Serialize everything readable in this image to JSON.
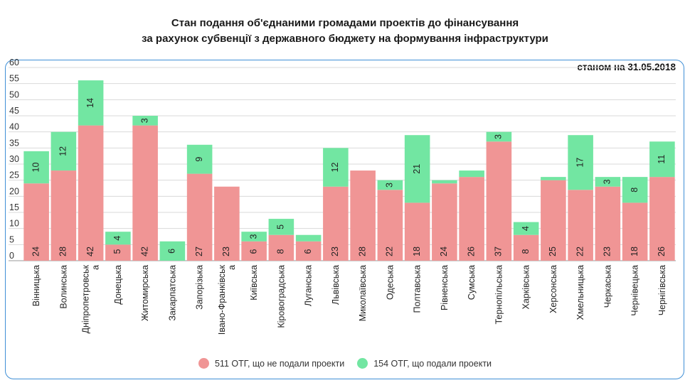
{
  "title_line1": "Стан подання об'єднаними громадами проектів до фінансування",
  "title_line2": "за рахунок субвенції з державного бюджету на формування інфраструктури",
  "chart_data": {
    "type": "bar",
    "stacked": true,
    "subtitle": "станом на 31.05.2018",
    "categories": [
      "Вінницька",
      "Волинська",
      "Дніпропетровськ а",
      "Донецька",
      "Житомирська",
      "Закарпатська",
      "Запорізька",
      "Івано-Франківськ а",
      "Київська",
      "Кіровоградська",
      "Луганська",
      "Львівська",
      "Миколаївська",
      "Одеська",
      "Полтавська",
      "Рівненська",
      "Сумська",
      "Тернопільська",
      "Харківська",
      "Херсонська",
      "Хмельницька",
      "Черкаська",
      "Чернівецька",
      "Чернігівська"
    ],
    "series": [
      {
        "name": "511 ОТГ, що не подали проекти",
        "color": "#f09595",
        "values": [
          24,
          28,
          42,
          5,
          42,
          0,
          27,
          23,
          6,
          8,
          6,
          23,
          28,
          22,
          18,
          24,
          26,
          37,
          8,
          25,
          22,
          23,
          18,
          26
        ],
        "labels": [
          "24",
          "28",
          "42",
          "5",
          "42",
          "",
          "27",
          "23",
          "6",
          "8",
          "6",
          "23",
          "28",
          "22",
          "18",
          "24",
          "26",
          "37",
          "8",
          "25",
          "22",
          "23",
          "18",
          "26"
        ]
      },
      {
        "name": "154 ОТГ, що подали проекти",
        "color": "#72e6a2",
        "values": [
          10,
          12,
          14,
          4,
          3,
          6,
          9,
          0,
          3,
          5,
          2,
          12,
          0,
          3,
          21,
          1,
          2,
          3,
          4,
          1,
          17,
          3,
          8,
          11
        ],
        "labels": [
          "10",
          "12",
          "14",
          "4",
          "3",
          "6",
          "9",
          "",
          "3",
          "5",
          "",
          "12",
          "",
          "3",
          "21",
          "",
          "",
          "3",
          "4",
          "",
          "17",
          "3",
          "8",
          "11"
        ]
      }
    ],
    "y_ticks": [
      "0",
      "5",
      "10",
      "15",
      "20",
      "25",
      "30",
      "35",
      "40",
      "45",
      "50",
      "55",
      "60"
    ],
    "ylim": [
      0,
      60
    ],
    "grid": true,
    "legend_position": "bottom"
  }
}
